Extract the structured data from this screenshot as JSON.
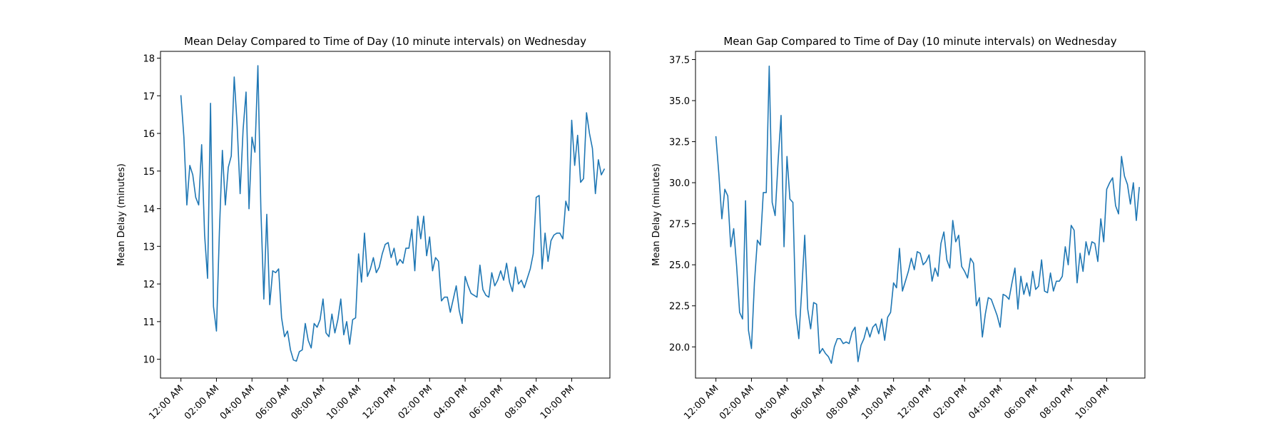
{
  "figure": {
    "background": "#ffffff",
    "line_color": "#1f77b4"
  },
  "chart_data": [
    {
      "type": "line",
      "title": "Mean Delay Compared to Time of Day (10 minute intervals) on Wednesday",
      "xlabel": "",
      "ylabel": "Mean Delay (minutes)",
      "x_tick_labels": [
        "12:00 AM",
        "02:00 AM",
        "04:00 AM",
        "06:00 AM",
        "08:00 AM",
        "10:00 AM",
        "12:00 PM",
        "02:00 PM",
        "04:00 PM",
        "06:00 PM",
        "08:00 PM",
        "10:00 PM"
      ],
      "x_ticks_hours": [
        0,
        2,
        4,
        6,
        8,
        10,
        12,
        14,
        16,
        18,
        20,
        22
      ],
      "y_ticks": [
        10,
        11,
        12,
        13,
        14,
        15,
        16,
        17,
        18
      ],
      "y_tick_labels": [
        "10",
        "11",
        "12",
        "13",
        "14",
        "15",
        "16",
        "17",
        "18"
      ],
      "xlim": [
        -1.15,
        24.15
      ],
      "ylim": [
        9.5,
        18.18
      ],
      "grid": false,
      "interval_minutes": 10,
      "series": [
        {
          "color": "#1f77b4",
          "x_hours_start": 0,
          "x_hours_step": 0.1666667,
          "values": [
            17.0,
            15.9,
            14.1,
            15.15,
            14.9,
            14.3,
            14.1,
            15.7,
            13.3,
            12.15,
            16.8,
            11.4,
            10.75,
            13.4,
            15.55,
            14.1,
            15.1,
            15.4,
            17.5,
            16.2,
            14.4,
            16.1,
            17.1,
            14.0,
            15.9,
            15.5,
            17.8,
            14.0,
            11.6,
            13.85,
            11.45,
            12.35,
            12.3,
            12.4,
            11.1,
            10.6,
            10.75,
            10.25,
            9.98,
            9.95,
            10.2,
            10.25,
            10.95,
            10.5,
            10.3,
            10.95,
            10.85,
            11.05,
            11.6,
            10.7,
            10.6,
            11.2,
            10.7,
            11.05,
            11.6,
            10.65,
            11.0,
            10.4,
            11.05,
            11.1,
            12.8,
            12.05,
            13.35,
            12.2,
            12.4,
            12.7,
            12.3,
            12.45,
            12.8,
            13.05,
            13.1,
            12.7,
            12.95,
            12.5,
            12.65,
            12.55,
            12.95,
            12.95,
            13.45,
            12.35,
            13.8,
            13.2,
            13.8,
            12.75,
            13.25,
            12.35,
            12.7,
            12.6,
            11.55,
            11.65,
            11.65,
            11.25,
            11.6,
            11.95,
            11.3,
            10.95,
            12.2,
            11.95,
            11.75,
            11.7,
            11.65,
            12.5,
            11.85,
            11.7,
            11.65,
            12.3,
            11.95,
            12.1,
            12.35,
            12.1,
            12.55,
            12.05,
            11.8,
            12.45,
            12.0,
            12.1,
            11.9,
            12.15,
            12.4,
            12.8,
            14.3,
            14.35,
            12.4,
            13.35,
            12.6,
            13.15,
            13.3,
            13.35,
            13.35,
            13.2,
            14.2,
            13.95,
            16.35,
            15.15,
            15.95,
            14.7,
            14.8,
            16.55,
            16.0,
            15.6,
            14.4,
            15.3,
            14.9,
            15.05
          ]
        }
      ]
    },
    {
      "type": "line",
      "title": "Mean Gap Compared to Time of Day (10 minute intervals) on Wednesday",
      "xlabel": "",
      "ylabel": "Mean Delay (minutes)",
      "x_tick_labels": [
        "12:00 AM",
        "02:00 AM",
        "04:00 AM",
        "06:00 AM",
        "08:00 AM",
        "10:00 AM",
        "12:00 PM",
        "02:00 PM",
        "04:00 PM",
        "06:00 PM",
        "08:00 PM",
        "10:00 PM"
      ],
      "x_ticks_hours": [
        0,
        2,
        4,
        6,
        8,
        10,
        12,
        14,
        16,
        18,
        20,
        22
      ],
      "y_ticks": [
        20.0,
        22.5,
        25.0,
        27.5,
        30.0,
        32.5,
        35.0,
        37.5
      ],
      "y_tick_labels": [
        "20.0",
        "22.5",
        "25.0",
        "27.5",
        "30.0",
        "32.5",
        "35.0",
        "37.5"
      ],
      "xlim": [
        -1.15,
        24.15
      ],
      "ylim": [
        18.1,
        38.0
      ],
      "grid": false,
      "interval_minutes": 10,
      "series": [
        {
          "color": "#1f77b4",
          "x_hours_start": 0,
          "x_hours_step": 0.1666667,
          "values": [
            32.8,
            30.5,
            27.8,
            29.6,
            29.2,
            26.1,
            27.2,
            24.9,
            22.1,
            21.7,
            28.9,
            21.0,
            19.9,
            23.9,
            26.5,
            26.2,
            29.4,
            29.4,
            37.1,
            28.8,
            28.0,
            31.3,
            34.1,
            26.1,
            31.6,
            29.0,
            28.8,
            22.0,
            20.5,
            23.5,
            26.8,
            22.3,
            21.1,
            22.7,
            22.6,
            19.6,
            19.9,
            19.6,
            19.4,
            19.0,
            20.0,
            20.5,
            20.5,
            20.2,
            20.3,
            20.2,
            20.9,
            21.2,
            19.1,
            20.1,
            20.5,
            21.2,
            20.6,
            21.2,
            21.4,
            20.8,
            21.7,
            20.4,
            21.8,
            22.1,
            23.9,
            23.6,
            26.0,
            23.4,
            24.0,
            24.6,
            25.4,
            24.7,
            25.8,
            25.7,
            25.0,
            25.2,
            25.6,
            24.0,
            24.8,
            24.3,
            26.3,
            27.0,
            25.3,
            24.8,
            27.7,
            26.4,
            26.8,
            24.9,
            24.6,
            24.2,
            25.4,
            25.1,
            22.5,
            23.0,
            20.6,
            22.0,
            23.0,
            22.9,
            22.4,
            21.9,
            21.2,
            23.2,
            23.1,
            22.9,
            23.9,
            24.8,
            22.3,
            24.3,
            23.2,
            23.9,
            23.1,
            24.6,
            23.5,
            23.7,
            25.3,
            23.4,
            23.3,
            24.5,
            23.4,
            24.0,
            24.0,
            24.3,
            26.1,
            25.0,
            27.4,
            27.1,
            23.9,
            25.7,
            24.6,
            26.4,
            25.6,
            26.4,
            26.3,
            25.2,
            27.8,
            26.4,
            29.6,
            30.0,
            30.3,
            28.6,
            28.1,
            31.6,
            30.4,
            29.9,
            28.7,
            30.0,
            27.7,
            29.7
          ]
        }
      ]
    }
  ]
}
